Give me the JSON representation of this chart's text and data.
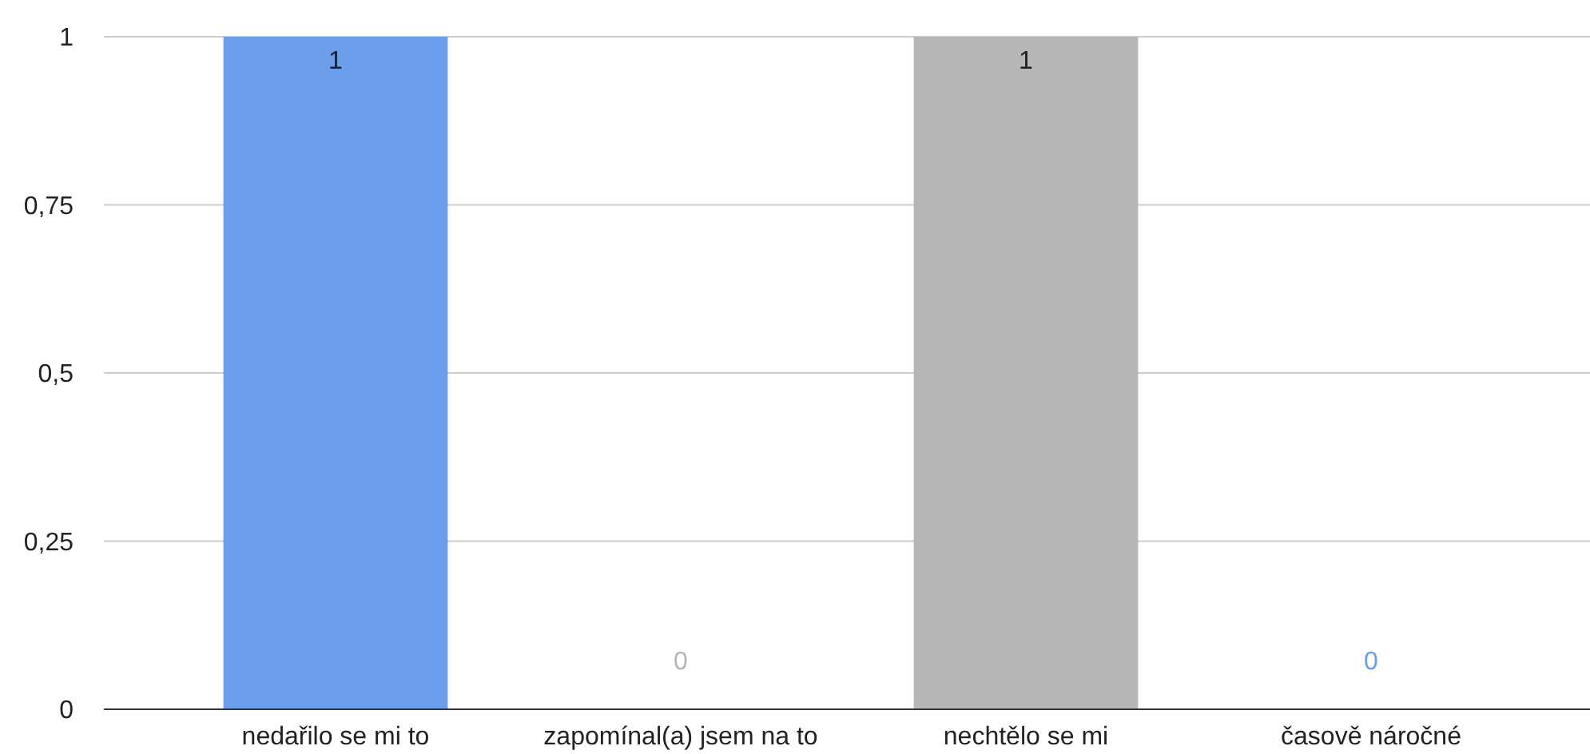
{
  "chart_data": {
    "type": "bar",
    "categories": [
      "nedařilo se mi to",
      "zapomínal(a) jsem na to",
      "nechtělo se mi",
      "časově náročné"
    ],
    "values": [
      1,
      0,
      1,
      0
    ],
    "colors": [
      "#6d9eeb",
      "#b7b7b7",
      "#b7b7b7",
      "#6d9eeb"
    ],
    "ylim": [
      0,
      1
    ],
    "yticks": [
      0,
      {
        "value": 0.25,
        "label": "0,25"
      },
      {
        "value": 0.5,
        "label": "0,5"
      },
      {
        "value": 0.75,
        "label": "0,75"
      },
      1
    ],
    "grid": "y",
    "data_labels": true
  }
}
